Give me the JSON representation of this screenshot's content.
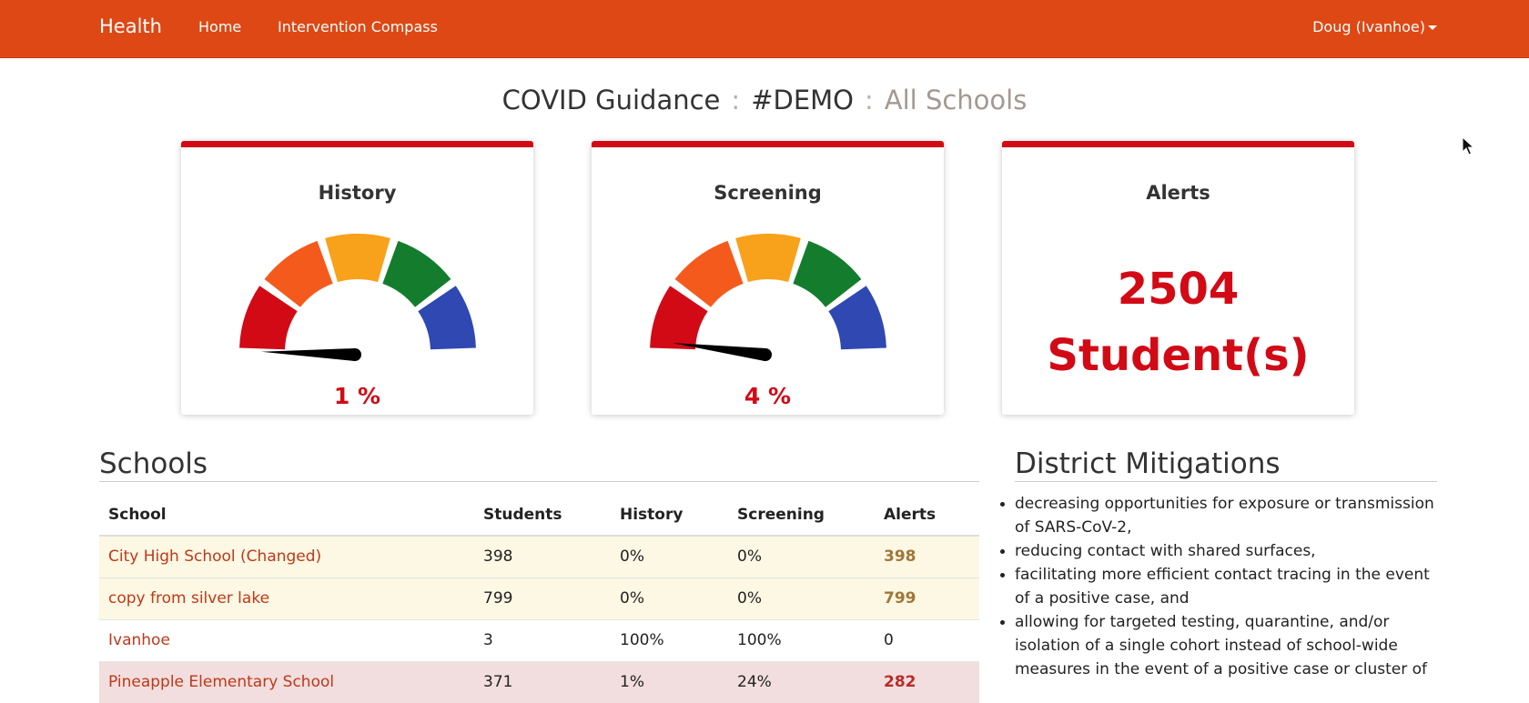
{
  "navbar": {
    "brand": "Health",
    "links": [
      {
        "label": "Home"
      },
      {
        "label": "Intervention Compass"
      }
    ],
    "user": "Doug (Ivanhoe)"
  },
  "page_title": {
    "main": "COVID Guidance",
    "separator": ":",
    "org": "#DEMO",
    "scope": "All Schools"
  },
  "cards": {
    "history": {
      "title": "History",
      "value_label": "1 %",
      "value": 1
    },
    "screening": {
      "title": "Screening",
      "value_label": "4 %",
      "value": 4
    },
    "alerts": {
      "title": "Alerts",
      "count": "2504",
      "unit": "Student(s)"
    }
  },
  "colors": {
    "navbar": "#dd4814",
    "accent_red": "#d20a16",
    "gauge_segments": [
      "#d20a16",
      "#f55a1d",
      "#f8a11b",
      "#147d2d",
      "#2f48b2"
    ]
  },
  "schools": {
    "title": "Schools",
    "columns": [
      "School",
      "Students",
      "History",
      "Screening",
      "Alerts"
    ],
    "rows": [
      {
        "school": "City High School (Changed)",
        "students": "398",
        "history": "0%",
        "screening": "0%",
        "alerts": "398",
        "status": "warn"
      },
      {
        "school": "copy from silver lake",
        "students": "799",
        "history": "0%",
        "screening": "0%",
        "alerts": "799",
        "status": "warn"
      },
      {
        "school": "Ivanhoe",
        "students": "3",
        "history": "100%",
        "screening": "100%",
        "alerts": "0",
        "status": "plain"
      },
      {
        "school": "Pineapple Elementary School",
        "students": "371",
        "history": "1%",
        "screening": "24%",
        "alerts": "282",
        "status": "danger"
      }
    ]
  },
  "mitigations": {
    "title": "District Mitigations",
    "items": [
      "decreasing opportunities for exposure or transmission of SARS-CoV-2,",
      "reducing contact with shared surfaces,",
      "facilitating more efficient contact tracing in the event of a positive case, and",
      "allowing for targeted testing, quarantine, and/or isolation of a single cohort instead of school-wide measures in the event of a positive case or cluster of"
    ]
  }
}
